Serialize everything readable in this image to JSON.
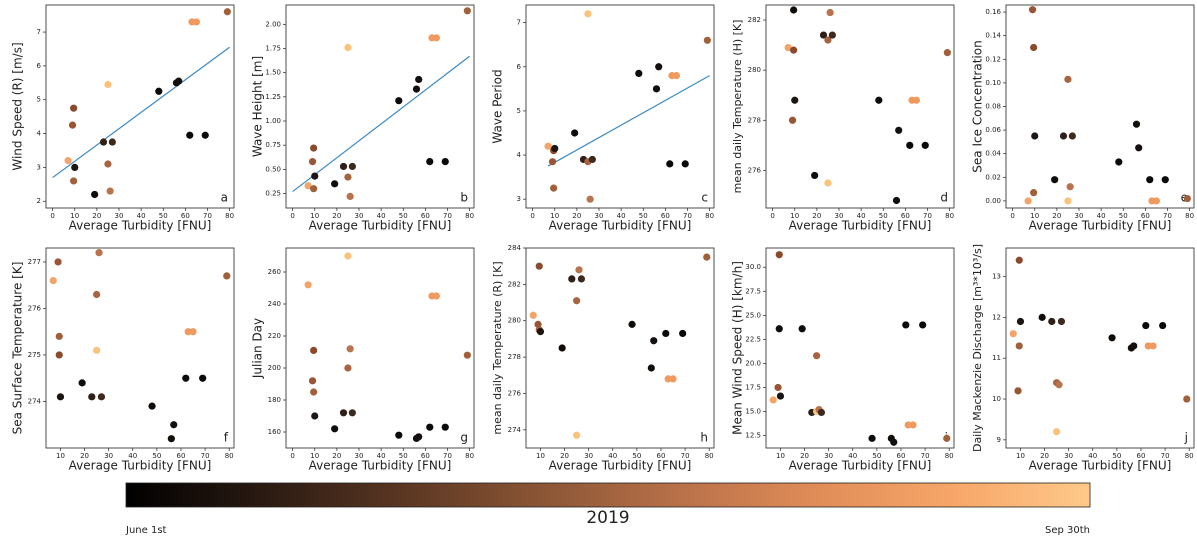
{
  "chart_data": [
    {
      "type": "scatter",
      "label": "a",
      "xlabel": "Average Turbidity [FNU]",
      "ylabel": "Wind Speed (R) [m/s]",
      "x": [
        7,
        9,
        9.5,
        9.5,
        10,
        19,
        23,
        25,
        25,
        26,
        27,
        48,
        56,
        57,
        62,
        63,
        65,
        69,
        79
      ],
      "values": [
        3.2,
        4.25,
        4.75,
        2.6,
        3.0,
        2.2,
        3.75,
        5.45,
        3.1,
        2.3,
        3.75,
        5.25,
        5.5,
        5.55,
        3.95,
        7.3,
        7.3,
        3.95,
        7.6
      ],
      "colors": [
        "#f4a468",
        "#9a5535",
        "#8a4a2c",
        "#a0603a",
        "#1c1512",
        "#100c0a",
        "#2e2018",
        "#fbc27c",
        "#a86440",
        "#b8724c",
        "#3c2a1e",
        "#0e0a08",
        "#120e0a",
        "#141010",
        "#0c0a08",
        "#f09a60",
        "#f09a60",
        "#0c0a08",
        "#a0603a"
      ],
      "fit": {
        "x": [
          0,
          80
        ],
        "y": [
          2.7,
          6.55
        ],
        "color": "#3b8ac4"
      },
      "xlim": [
        -3,
        82
      ],
      "xticks": [
        0,
        10,
        20,
        30,
        40,
        50,
        60,
        70,
        80
      ],
      "ylim": [
        1.8,
        7.8
      ],
      "yticks": [
        2,
        3,
        4,
        5,
        6,
        7
      ]
    },
    {
      "type": "scatter",
      "label": "b",
      "xlabel": "Average Turbidity [FNU]",
      "ylabel": "Wave Height [m]",
      "x": [
        7,
        9,
        9.5,
        9.5,
        10,
        19,
        23,
        25,
        25,
        26,
        27,
        48,
        56,
        57,
        62,
        63,
        65,
        69,
        79
      ],
      "values": [
        0.33,
        0.58,
        0.72,
        0.3,
        0.43,
        0.35,
        0.53,
        1.76,
        0.42,
        0.22,
        0.53,
        1.21,
        1.33,
        1.43,
        0.58,
        1.86,
        1.86,
        0.58,
        2.14
      ],
      "colors": [
        "#f4a468",
        "#9a5535",
        "#8a4a2c",
        "#a0603a",
        "#1c1512",
        "#100c0a",
        "#2e2018",
        "#fbc27c",
        "#a86440",
        "#b8724c",
        "#3c2a1e",
        "#0e0a08",
        "#120e0a",
        "#141010",
        "#0c0a08",
        "#f09a60",
        "#f09a60",
        "#0c0a08",
        "#a0603a"
      ],
      "fit": {
        "x": [
          0,
          80
        ],
        "y": [
          0.27,
          1.67
        ],
        "color": "#3b8ac4"
      },
      "xlim": [
        -3,
        82
      ],
      "xticks": [
        0,
        10,
        20,
        30,
        40,
        50,
        60,
        70,
        80
      ],
      "ylim": [
        0.1,
        2.2
      ],
      "yticks": [
        {
          "value": 0.25,
          "label": "0.25"
        },
        {
          "value": 0.5,
          "label": "0.50"
        },
        {
          "value": 0.75,
          "label": "0.75"
        },
        {
          "value": 1,
          "label": "1.00"
        },
        {
          "value": 1.25,
          "label": "1.25"
        },
        {
          "value": 1.5,
          "label": "1.50"
        },
        {
          "value": 1.75,
          "label": "1.75"
        },
        {
          "value": 2,
          "label": "2.00"
        }
      ]
    },
    {
      "type": "scatter",
      "label": "c",
      "xlabel": "Average Turbidity [FNU]",
      "ylabel": "Wave Period",
      "x": [
        7,
        9,
        9.5,
        9.5,
        10,
        19,
        23,
        25,
        25,
        26,
        27,
        48,
        56,
        57,
        62,
        63,
        65,
        69,
        79
      ],
      "values": [
        4.2,
        3.85,
        4.1,
        3.25,
        4.15,
        4.5,
        3.9,
        7.2,
        3.85,
        3.0,
        3.9,
        5.85,
        5.5,
        6.0,
        3.8,
        5.8,
        5.8,
        3.8,
        6.6
      ],
      "colors": [
        "#f4a468",
        "#9a5535",
        "#8a4a2c",
        "#a0603a",
        "#1c1512",
        "#100c0a",
        "#2e2018",
        "#fbc27c",
        "#a86440",
        "#b8724c",
        "#3c2a1e",
        "#0e0a08",
        "#120e0a",
        "#141010",
        "#0c0a08",
        "#f09a60",
        "#f09a60",
        "#0c0a08",
        "#a0603a"
      ],
      "fit": {
        "x": [
          7,
          80
        ],
        "y": [
          3.75,
          5.8
        ],
        "color": "#3b8ac4"
      },
      "xlim": [
        -3,
        82
      ],
      "xticks": [
        0,
        10,
        20,
        30,
        40,
        50,
        60,
        70,
        80
      ],
      "ylim": [
        2.8,
        7.4
      ],
      "yticks": [
        3,
        4,
        5,
        6,
        7
      ]
    },
    {
      "type": "scatter",
      "label": "d",
      "xlabel": "Average Turbidity [FNU]",
      "ylabel": "mean daily Temperature (H) [K]",
      "x": [
        7,
        9,
        9.5,
        9.5,
        10,
        19,
        23,
        25,
        25,
        26,
        27,
        48,
        56,
        57,
        62,
        63,
        65,
        69,
        79
      ],
      "values": [
        280.9,
        278.0,
        280.8,
        282.4,
        278.8,
        275.8,
        281.4,
        275.5,
        281.2,
        282.3,
        281.4,
        278.8,
        274.8,
        277.6,
        277.0,
        278.8,
        278.8,
        277.0,
        280.7
      ],
      "colors": [
        "#f4a468",
        "#9a5535",
        "#8a4a2c",
        "#100c0a",
        "#1c1512",
        "#100c0a",
        "#2e2018",
        "#fbc27c",
        "#a86440",
        "#b8724c",
        "#3c2a1e",
        "#0e0a08",
        "#120e0a",
        "#141010",
        "#0c0a08",
        "#f09a60",
        "#f09a60",
        "#0c0a08",
        "#a0603a"
      ],
      "xlim": [
        -3,
        82
      ],
      "xticks": [
        0,
        10,
        20,
        30,
        40,
        50,
        60,
        70,
        80
      ],
      "ylim": [
        274.5,
        282.6
      ],
      "yticks": [
        276,
        278,
        280,
        282
      ]
    },
    {
      "type": "scatter",
      "label": "e",
      "xlabel": "Average Turbidity [FNU]",
      "ylabel": "Sea Ice Concentration",
      "x": [
        7,
        9,
        9.5,
        9.5,
        10,
        19,
        23,
        25,
        25,
        26,
        27,
        48,
        56,
        57,
        62,
        63,
        65,
        69,
        79
      ],
      "values": [
        0,
        0.162,
        0.13,
        0.007,
        0.055,
        0.018,
        0.055,
        0,
        0.103,
        0.012,
        0.055,
        0.033,
        0.065,
        0.045,
        0.018,
        0,
        0,
        0.018,
        0.002
      ],
      "colors": [
        "#f4a468",
        "#9a5535",
        "#8a4a2c",
        "#a0603a",
        "#1c1512",
        "#100c0a",
        "#2e2018",
        "#fbc27c",
        "#a86440",
        "#b8724c",
        "#3c2a1e",
        "#0e0a08",
        "#120e0a",
        "#141010",
        "#0c0a08",
        "#f09a60",
        "#f09a60",
        "#0c0a08",
        "#a0603a"
      ],
      "xlim": [
        -3,
        82
      ],
      "xticks": [
        0,
        10,
        20,
        30,
        40,
        50,
        60,
        70,
        80
      ],
      "ylim": [
        -0.006,
        0.166
      ],
      "yticks": [
        {
          "value": 0,
          "label": "0.00"
        },
        {
          "value": 0.02,
          "label": "0.02"
        },
        {
          "value": 0.04,
          "label": "0.04"
        },
        {
          "value": 0.06,
          "label": "0.06"
        },
        {
          "value": 0.08,
          "label": "0.08"
        },
        {
          "value": 0.1,
          "label": "0.10"
        },
        {
          "value": 0.12,
          "label": "0.12"
        },
        {
          "value": 0.14,
          "label": "0.14"
        },
        {
          "value": 0.16,
          "label": "0.16"
        }
      ]
    },
    {
      "type": "scatter",
      "label": "f",
      "xlabel": "Average Turbidity [FNU]",
      "ylabel": "Sea Surface Temperature [K]",
      "x": [
        7,
        9,
        9.5,
        9.5,
        10,
        19,
        23,
        25,
        25,
        26,
        27,
        48,
        56,
        57,
        62,
        63,
        65,
        69,
        79
      ],
      "values": [
        276.6,
        277.0,
        275.0,
        275.4,
        274.1,
        274.4,
        274.1,
        275.1,
        276.3,
        277.2,
        274.1,
        273.9,
        273.2,
        273.5,
        274.5,
        275.5,
        275.5,
        274.5,
        276.7
      ],
      "colors": [
        "#f4a468",
        "#9a5535",
        "#8a4a2c",
        "#a0603a",
        "#1c1512",
        "#100c0a",
        "#2e2018",
        "#fbc27c",
        "#a86440",
        "#b8724c",
        "#3c2a1e",
        "#0e0a08",
        "#120e0a",
        "#141010",
        "#0c0a08",
        "#f09a60",
        "#f09a60",
        "#0c0a08",
        "#a0603a"
      ],
      "xlim": [
        4,
        82
      ],
      "xticks": [
        10,
        20,
        30,
        40,
        50,
        60,
        70,
        80
      ],
      "ylim": [
        273.0,
        277.3
      ],
      "yticks": [
        274,
        275,
        276,
        277
      ]
    },
    {
      "type": "scatter",
      "label": "g",
      "xlabel": "Average Turbidity [FNU]",
      "ylabel": "Julian Day",
      "x": [
        7,
        9,
        9.5,
        9.5,
        10,
        19,
        23,
        25,
        25,
        26,
        27,
        48,
        56,
        57,
        62,
        63,
        65,
        69,
        79
      ],
      "values": [
        252,
        192,
        211,
        185,
        170,
        162,
        172,
        270,
        200,
        212,
        172,
        158,
        156,
        157,
        163,
        245,
        245,
        163,
        208
      ],
      "colors": [
        "#f4a468",
        "#9a5535",
        "#8a4a2c",
        "#a0603a",
        "#1c1512",
        "#100c0a",
        "#2e2018",
        "#fbc27c",
        "#a86440",
        "#b8724c",
        "#3c2a1e",
        "#0e0a08",
        "#120e0a",
        "#141010",
        "#0c0a08",
        "#f09a60",
        "#f09a60",
        "#0c0a08",
        "#a0603a"
      ],
      "xlim": [
        -3,
        82
      ],
      "xticks": [
        0,
        10,
        20,
        30,
        40,
        50,
        60,
        70,
        80
      ],
      "ylim": [
        150,
        275
      ],
      "yticks": [
        160,
        180,
        200,
        220,
        240,
        260
      ]
    },
    {
      "type": "scatter",
      "label": "h",
      "xlabel": "Average Turbidity [FNU]",
      "ylabel": "mean daily Temperature (R) [K]",
      "x": [
        7,
        9,
        9.5,
        9.5,
        10,
        19,
        23,
        25,
        25,
        26,
        27,
        48,
        56,
        57,
        62,
        63,
        65,
        69,
        79
      ],
      "values": [
        280.3,
        279.8,
        283.0,
        279.5,
        279.4,
        278.5,
        282.3,
        273.7,
        281.1,
        282.8,
        282.3,
        279.8,
        277.4,
        278.9,
        279.3,
        276.8,
        276.8,
        279.3,
        283.5
      ],
      "colors": [
        "#f4a468",
        "#9a5535",
        "#8a4a2c",
        "#a0603a",
        "#1c1512",
        "#100c0a",
        "#2e2018",
        "#fbc27c",
        "#a86440",
        "#b8724c",
        "#3c2a1e",
        "#0e0a08",
        "#120e0a",
        "#141010",
        "#0c0a08",
        "#f09a60",
        "#f09a60",
        "#0c0a08",
        "#a0603a"
      ],
      "xlim": [
        4,
        82
      ],
      "xticks": [
        10,
        20,
        30,
        40,
        50,
        60,
        70,
        80
      ],
      "ylim": [
        273.0,
        284.0
      ],
      "yticks": [
        274,
        276,
        278,
        280,
        282,
        284
      ]
    },
    {
      "type": "scatter",
      "label": "i",
      "xlabel": "Average Turbidity [FNU]",
      "ylabel": "Mean Wind Speed (H) [km/h]",
      "x": [
        7,
        9,
        9.5,
        9.5,
        10,
        19,
        23,
        25,
        25,
        26,
        27,
        48,
        56,
        57,
        62,
        63,
        65,
        69,
        79
      ],
      "values": [
        16.2,
        17.5,
        31.3,
        23.6,
        16.6,
        23.6,
        14.9,
        15.0,
        20.8,
        15.2,
        14.9,
        12.2,
        12.2,
        11.8,
        24.0,
        13.6,
        13.6,
        24.0,
        12.2
      ],
      "colors": [
        "#f4a468",
        "#9a5535",
        "#8a4a2c",
        "#100c0a",
        "#1c1512",
        "#100c0a",
        "#2e2018",
        "#fbc27c",
        "#a86440",
        "#b8724c",
        "#3c2a1e",
        "#0e0a08",
        "#120e0a",
        "#141010",
        "#0c0a08",
        "#f09a60",
        "#f09a60",
        "#0c0a08",
        "#a0603a"
      ],
      "xlim": [
        4,
        82
      ],
      "xticks": [
        10,
        20,
        30,
        40,
        50,
        60,
        70,
        80
      ],
      "ylim": [
        11.2,
        32
      ],
      "yticks": [
        12.5,
        {
          "value": 15,
          "label": "15.0"
        },
        17.5,
        {
          "value": 20,
          "label": "20.0"
        },
        22.5,
        {
          "value": 25,
          "label": "25.0"
        },
        27.5,
        {
          "value": 30,
          "label": "30.0"
        }
      ]
    },
    {
      "type": "scatter",
      "label": "j",
      "xlabel": "Average Turbidity [FNU]",
      "ylabel": "Daily Mackenzie Discharge [m³*10³/s]",
      "x": [
        7,
        9,
        9.5,
        9.5,
        10,
        19,
        23,
        25,
        25,
        26,
        27,
        48,
        56,
        57,
        62,
        63,
        65,
        69,
        79
      ],
      "values": [
        11.6,
        10.2,
        13.4,
        11.3,
        11.9,
        12.0,
        11.9,
        9.2,
        10.4,
        10.35,
        11.9,
        11.5,
        11.25,
        11.3,
        11.8,
        11.3,
        11.3,
        11.8,
        10.0
      ],
      "colors": [
        "#f4a468",
        "#9a5535",
        "#8a4a2c",
        "#a0603a",
        "#1c1512",
        "#100c0a",
        "#2e2018",
        "#fbc27c",
        "#a86440",
        "#b8724c",
        "#3c2a1e",
        "#0e0a08",
        "#120e0a",
        "#141010",
        "#0c0a08",
        "#f09a60",
        "#f09a60",
        "#0c0a08",
        "#a0603a"
      ],
      "xlim": [
        4,
        82
      ],
      "xticks": [
        10,
        20,
        30,
        40,
        50,
        60,
        70,
        80
      ],
      "ylim": [
        8.8,
        13.7
      ],
      "yticks": [
        9,
        10,
        11,
        12,
        13
      ]
    }
  ],
  "colorbar": {
    "title": "2019",
    "start_label": "June 1st",
    "end_label": "Sep 30th",
    "colormap": [
      "#000000",
      "#2a1a12",
      "#5a3622",
      "#8a5535",
      "#b87048",
      "#e08c58",
      "#f7a668",
      "#fec98a"
    ]
  }
}
